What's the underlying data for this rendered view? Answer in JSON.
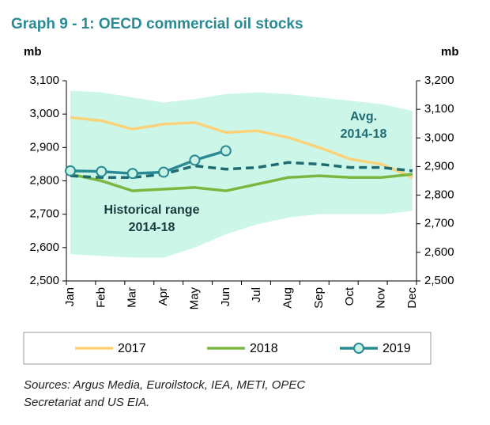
{
  "chart_data": {
    "type": "line",
    "title": "Graph 9 - 1: OECD commercial oil stocks",
    "y_label": "mb",
    "y2_label": "mb",
    "categories": [
      "Jan",
      "Feb",
      "Mar",
      "Apr",
      "May",
      "Jun",
      "Jul",
      "Aug",
      "Sep",
      "Oct",
      "Nov",
      "Dec"
    ],
    "ylim": [
      2500,
      3100
    ],
    "yticks": [
      {
        "value": 2500,
        "label": "2,500"
      },
      {
        "value": 2600,
        "label": "2,600"
      },
      {
        "value": 2700,
        "label": "2,700"
      },
      {
        "value": 2800,
        "label": "2,800"
      },
      {
        "value": 2900,
        "label": "2,900"
      },
      {
        "value": 3000,
        "label": "3,000"
      },
      {
        "value": 3100,
        "label": "3,100"
      }
    ],
    "y2lim": [
      2500,
      3200
    ],
    "y2ticks": [
      {
        "value": 2500,
        "label": "2,500"
      },
      {
        "value": 2600,
        "label": "2,600"
      },
      {
        "value": 2700,
        "label": "2,700"
      },
      {
        "value": 2800,
        "label": "2,800"
      },
      {
        "value": 2900,
        "label": "2,900"
      },
      {
        "value": 3000,
        "label": "3,000"
      },
      {
        "value": 3100,
        "label": "3,100"
      },
      {
        "value": 3200,
        "label": "3,200"
      }
    ],
    "range": {
      "label": [
        "Historical range",
        "2014-18"
      ],
      "color": "#ccf7e8",
      "high": [
        3070,
        3065,
        3050,
        3035,
        3045,
        3060,
        3065,
        3060,
        3050,
        3040,
        3030,
        3010
      ],
      "low": [
        2580,
        2575,
        2570,
        2570,
        2600,
        2640,
        2670,
        2690,
        2700,
        2700,
        2700,
        2710
      ]
    },
    "avg": {
      "label": [
        "Avg.",
        "2014-18"
      ],
      "color": "#1f6b73",
      "values": [
        2815,
        2810,
        2810,
        2820,
        2845,
        2835,
        2840,
        2855,
        2850,
        2840,
        2840,
        2830
      ]
    },
    "series": [
      {
        "name": "2017",
        "color": "#fbd27a",
        "values": [
          2990,
          2980,
          2955,
          2970,
          2975,
          2945,
          2950,
          2930,
          2900,
          2865,
          2850,
          2810
        ]
      },
      {
        "name": "2018",
        "color": "#7cb640",
        "values": [
          2820,
          2800,
          2770,
          2775,
          2780,
          2770,
          2790,
          2810,
          2815,
          2810,
          2810,
          2820
        ]
      },
      {
        "name": "2019",
        "color": "#2a8a94",
        "marker": true,
        "values": [
          2830,
          2828,
          2822,
          2826,
          2862,
          2890,
          null,
          null,
          null,
          null,
          null,
          null
        ]
      }
    ],
    "source": [
      "Sources: Argus Media, Euroilstock, IEA, METI, OPEC",
      "Secretariat and US EIA."
    ]
  }
}
